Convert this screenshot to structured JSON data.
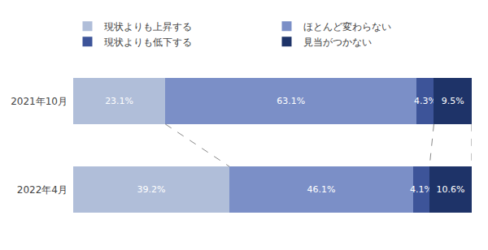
{
  "chart_data": {
    "type": "bar",
    "orientation": "horizontal",
    "stacked": true,
    "categories": [
      "2021年10月",
      "2022年4月"
    ],
    "series": [
      {
        "name": "現状よりも上昇する",
        "color": "#b0bed9",
        "values": [
          23.1,
          39.2
        ],
        "value_labels": [
          "23.1%",
          "39.2%"
        ]
      },
      {
        "name": "ほとんど変わらない",
        "color": "#7b8fc7",
        "values": [
          63.1,
          46.1
        ],
        "value_labels": [
          "63.1%",
          "46.1%"
        ]
      },
      {
        "name": "現状よりも低下する",
        "color": "#3d5499",
        "values": [
          4.3,
          4.1
        ],
        "value_labels": [
          "4.3%",
          "4.1%"
        ]
      },
      {
        "name": "見当がつかない",
        "color": "#1e3368",
        "values": [
          9.5,
          10.6
        ],
        "value_labels": [
          "9.5%",
          "10.6%"
        ]
      }
    ],
    "xlim": [
      0,
      100
    ],
    "data_labels": true,
    "tick_labels": "y",
    "legend": "top"
  }
}
